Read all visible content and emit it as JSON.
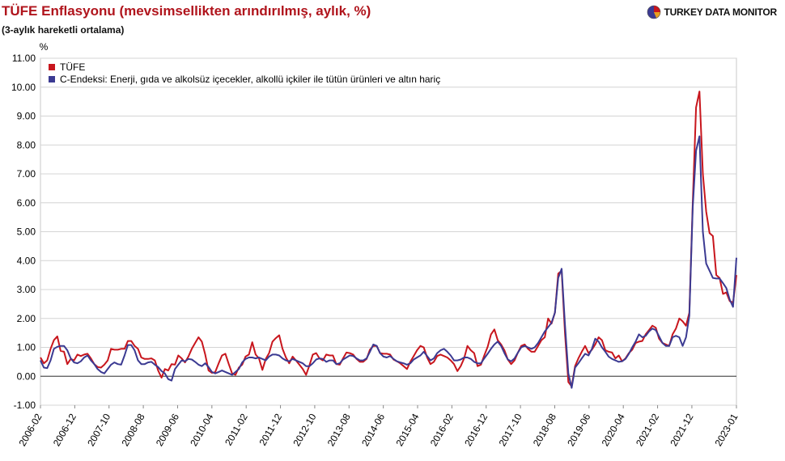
{
  "header": {
    "title": "TÜFE Enflasyonu (mevsimsellikten arındırılmış, aylık, %)",
    "subtitle": "(3-aylık hareketli ortalama)",
    "brand": "TURKEY DATA MONITOR"
  },
  "colors": {
    "tufe": "#c8161d",
    "core": "#3b3a92",
    "title": "#b0141c"
  },
  "chart_data": {
    "type": "line",
    "title": "TÜFE Enflasyonu (mevsimsellikten arındırılmış, aylık, %)",
    "subtitle": "(3-aylık hareketli ortalama)",
    "ylabel": "%",
    "xlabel": "",
    "ylim": [
      -1,
      11
    ],
    "yticks": [
      "-1.00",
      "0.00",
      "1.00",
      "2.00",
      "3.00",
      "4.00",
      "5.00",
      "6.00",
      "7.00",
      "8.00",
      "9.00",
      "10.00",
      "11.00"
    ],
    "grid": "horizontal",
    "legend_position": "top-left",
    "x_start": "2006-02",
    "x_end": "2023-01",
    "xtick_labels": [
      "2006-02",
      "2006-12",
      "2007-10",
      "2008-08",
      "2009-06",
      "2010-04",
      "2011-02",
      "2011-12",
      "2012-10",
      "2013-08",
      "2014-06",
      "2015-04",
      "2016-02",
      "2016-12",
      "2017-10",
      "2018-08",
      "2019-06",
      "2020-04",
      "2021-02",
      "2021-12",
      "2023-01"
    ],
    "series": [
      {
        "name": "TÜFE",
        "color": "#c8161d",
        "values": [
          0.65,
          0.45,
          0.55,
          0.95,
          1.25,
          1.38,
          0.88,
          0.85,
          0.42,
          0.6,
          0.55,
          0.75,
          0.7,
          0.75,
          0.78,
          0.62,
          0.42,
          0.32,
          0.3,
          0.4,
          0.55,
          0.95,
          0.92,
          0.92,
          0.95,
          0.95,
          1.22,
          1.22,
          1.05,
          0.95,
          0.65,
          0.6,
          0.6,
          0.62,
          0.55,
          0.2,
          -0.05,
          0.25,
          0.2,
          0.42,
          0.4,
          0.72,
          0.62,
          0.48,
          0.68,
          0.95,
          1.15,
          1.35,
          1.2,
          0.75,
          0.2,
          0.12,
          0.15,
          0.45,
          0.72,
          0.78,
          0.42,
          0.1,
          0.05,
          0.3,
          0.4,
          0.68,
          0.75,
          1.18,
          0.75,
          0.62,
          0.22,
          0.6,
          0.8,
          1.2,
          1.32,
          1.42,
          0.95,
          0.65,
          0.45,
          0.68,
          0.55,
          0.4,
          0.25,
          0.05,
          0.38,
          0.75,
          0.8,
          0.62,
          0.55,
          0.75,
          0.72,
          0.72,
          0.42,
          0.4,
          0.62,
          0.82,
          0.8,
          0.75,
          0.6,
          0.5,
          0.5,
          0.6,
          0.92,
          1.05,
          1.05,
          0.8,
          0.78,
          0.78,
          0.75,
          0.58,
          0.52,
          0.45,
          0.35,
          0.25,
          0.5,
          0.7,
          0.9,
          1.05,
          1.0,
          0.65,
          0.42,
          0.5,
          0.7,
          0.75,
          0.7,
          0.65,
          0.55,
          0.42,
          0.18,
          0.35,
          0.62,
          1.05,
          0.9,
          0.8,
          0.35,
          0.4,
          0.72,
          1.02,
          1.45,
          1.62,
          1.25,
          1.1,
          0.9,
          0.58,
          0.42,
          0.55,
          0.82,
          1.05,
          1.1,
          0.95,
          0.85,
          0.85,
          1.05,
          1.25,
          1.35,
          2.0,
          1.82,
          2.2,
          3.55,
          3.65,
          1.5,
          -0.2,
          -0.35,
          0.35,
          0.62,
          0.85,
          1.05,
          0.8,
          0.92,
          1.1,
          1.35,
          1.25,
          0.9,
          0.85,
          0.82,
          0.62,
          0.72,
          0.52,
          0.62,
          0.8,
          0.92,
          1.15,
          1.2,
          1.22,
          1.45,
          1.6,
          1.75,
          1.68,
          1.3,
          1.15,
          1.1,
          1.05,
          1.45,
          1.65,
          2.0,
          1.9,
          1.75,
          2.2,
          6.0,
          9.3,
          9.85,
          7.0,
          5.7,
          4.95,
          4.85,
          3.5,
          3.4,
          2.85,
          2.9,
          2.6,
          2.55,
          3.5
        ]
      },
      {
        "name": "C-Endeksi: Enerji, gıda ve alkolsüz içecekler, alkollü içkiler ile tütün ürünleri ve altın hariç",
        "color": "#3b3a92",
        "values": [
          0.55,
          0.3,
          0.28,
          0.55,
          0.95,
          1.02,
          1.05,
          1.05,
          0.9,
          0.62,
          0.48,
          0.45,
          0.52,
          0.65,
          0.72,
          0.55,
          0.42,
          0.25,
          0.15,
          0.1,
          0.25,
          0.4,
          0.48,
          0.42,
          0.4,
          0.72,
          1.08,
          1.08,
          0.9,
          0.55,
          0.42,
          0.42,
          0.48,
          0.5,
          0.4,
          0.32,
          0.18,
          0.1,
          -0.1,
          -0.15,
          0.25,
          0.4,
          0.55,
          0.52,
          0.6,
          0.58,
          0.5,
          0.4,
          0.35,
          0.45,
          0.32,
          0.15,
          0.1,
          0.15,
          0.2,
          0.15,
          0.1,
          0.05,
          0.15,
          0.25,
          0.48,
          0.6,
          0.65,
          0.65,
          0.62,
          0.65,
          0.6,
          0.55,
          0.68,
          0.75,
          0.75,
          0.72,
          0.62,
          0.55,
          0.52,
          0.6,
          0.55,
          0.5,
          0.45,
          0.35,
          0.35,
          0.45,
          0.58,
          0.62,
          0.6,
          0.5,
          0.55,
          0.55,
          0.42,
          0.45,
          0.58,
          0.65,
          0.72,
          0.7,
          0.62,
          0.55,
          0.55,
          0.62,
          0.85,
          1.1,
          1.05,
          0.8,
          0.68,
          0.65,
          0.7,
          0.6,
          0.52,
          0.48,
          0.45,
          0.4,
          0.45,
          0.58,
          0.65,
          0.72,
          0.85,
          0.7,
          0.55,
          0.62,
          0.8,
          0.9,
          0.95,
          0.85,
          0.72,
          0.55,
          0.55,
          0.58,
          0.65,
          0.65,
          0.6,
          0.5,
          0.45,
          0.45,
          0.62,
          0.78,
          0.95,
          1.1,
          1.2,
          1.05,
          0.8,
          0.58,
          0.52,
          0.62,
          0.82,
          1.0,
          1.05,
          1.0,
          0.95,
          1.0,
          1.15,
          1.35,
          1.55,
          1.7,
          1.85,
          2.2,
          3.4,
          3.72,
          1.8,
          0.1,
          -0.4,
          0.3,
          0.45,
          0.62,
          0.78,
          0.72,
          0.95,
          1.3,
          1.2,
          1.0,
          0.85,
          0.68,
          0.6,
          0.55,
          0.5,
          0.52,
          0.6,
          0.78,
          1.0,
          1.2,
          1.45,
          1.35,
          1.4,
          1.55,
          1.65,
          1.6,
          1.38,
          1.15,
          1.05,
          1.05,
          1.35,
          1.4,
          1.35,
          1.05,
          1.35,
          2.1,
          5.85,
          7.8,
          8.3,
          5.0,
          3.9,
          3.65,
          3.4,
          3.38,
          3.38,
          3.22,
          3.05,
          2.65,
          2.4,
          4.1
        ]
      }
    ]
  }
}
